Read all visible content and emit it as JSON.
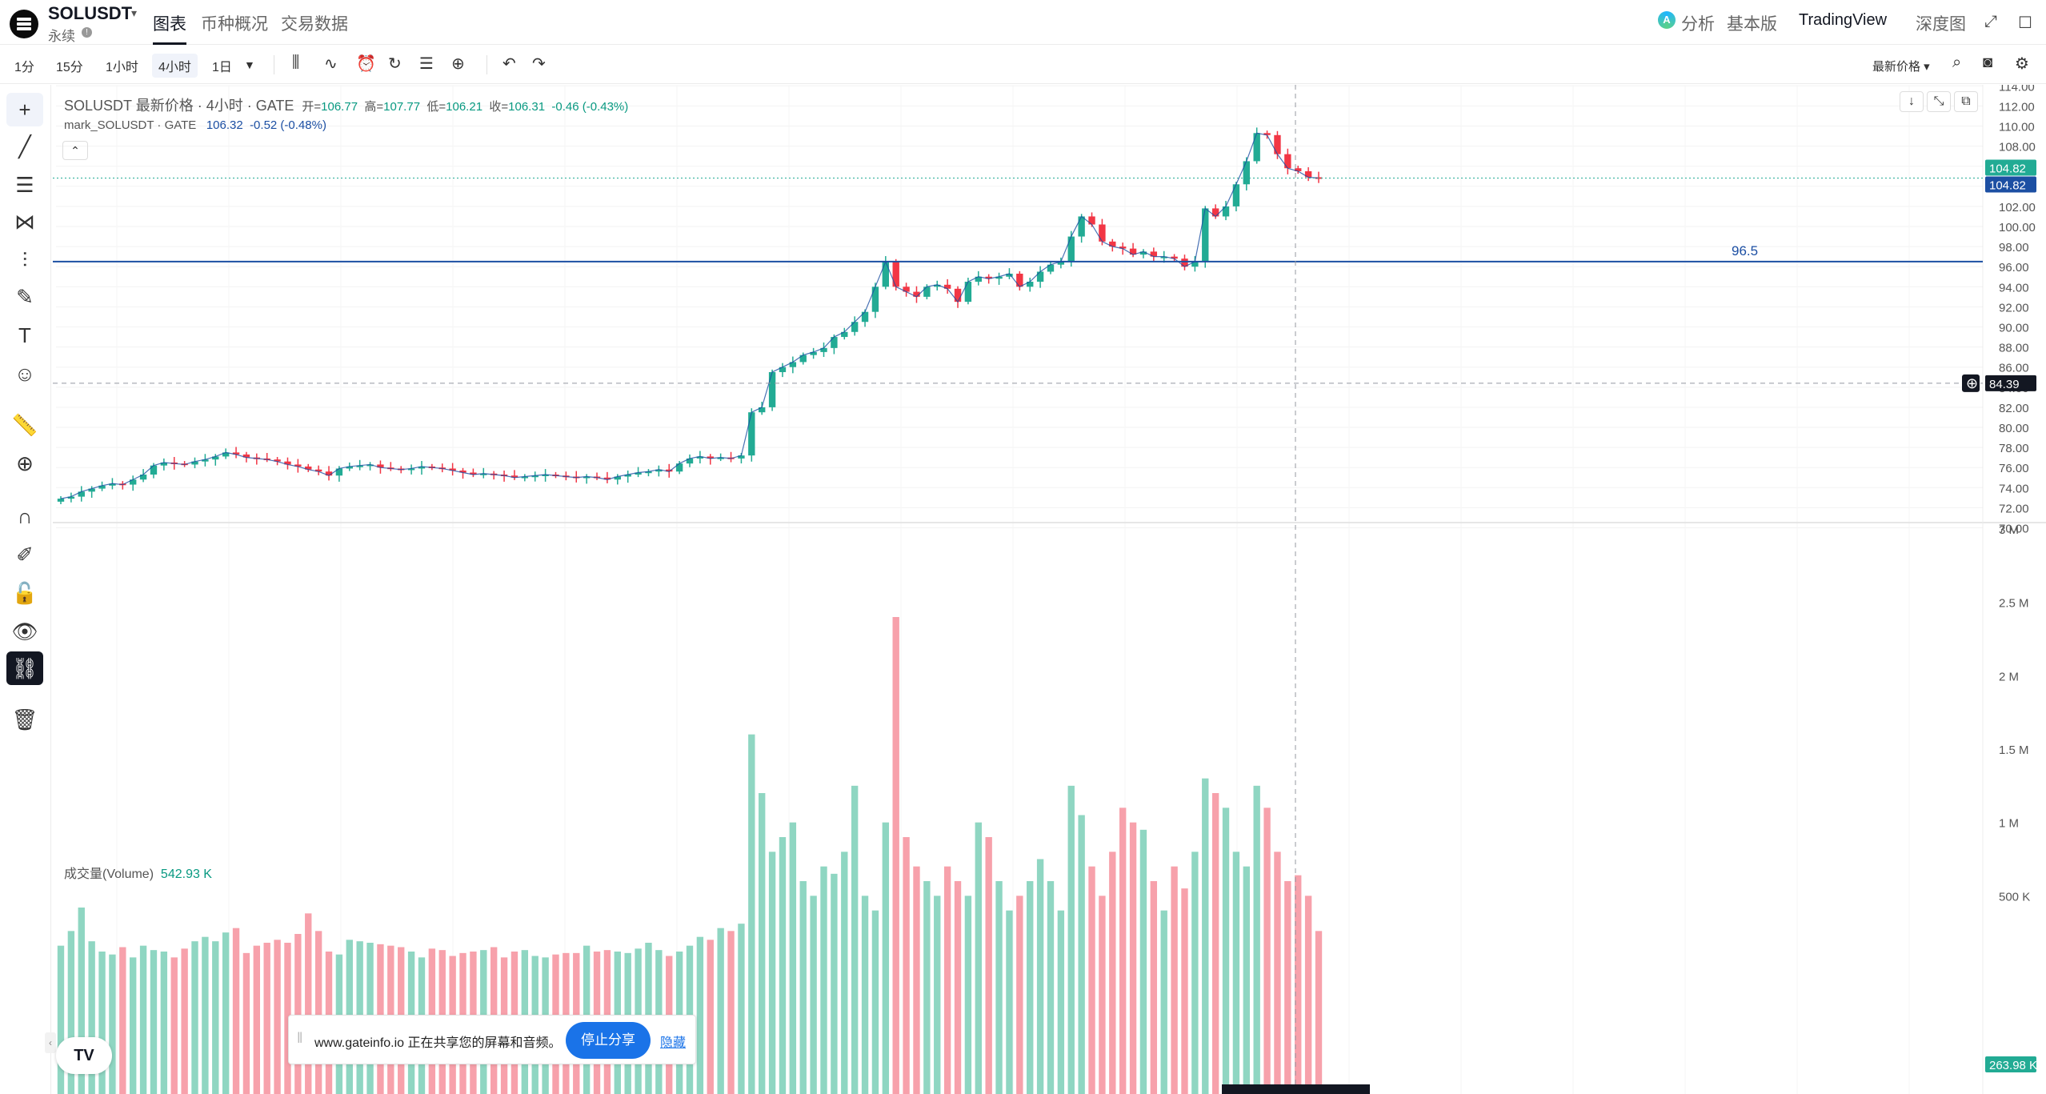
{
  "header": {
    "symbol": "SOLUSDT",
    "subtitle": "永续",
    "tabs": [
      {
        "label": "图表",
        "active": true
      },
      {
        "label": "币种概况",
        "active": false
      },
      {
        "label": "交易数据",
        "active": false
      }
    ],
    "right": {
      "analysis": "分析",
      "basic": "基本版",
      "tradingview": "TradingView",
      "depth": "深度图"
    }
  },
  "toolbar": {
    "timeframes": [
      "1分",
      "15分",
      "1小时",
      "4小时",
      "1日"
    ],
    "active_timeframe": "4小时",
    "price_type": "最新价格"
  },
  "legend": {
    "title": "SOLUSDT 最新价格 · 4小时 · GATE",
    "open_label": "开=",
    "open": "106.77",
    "high_label": "高=",
    "high": "107.77",
    "low_label": "低=",
    "low": "106.21",
    "close_label": "收=",
    "close": "106.31",
    "change": "-0.46 (-0.43%)",
    "mark_title": "mark_SOLUSDT · GATE",
    "mark_value": "106.32",
    "mark_change": "-0.52 (-0.48%)"
  },
  "volume_legend": {
    "label": "成交量(Volume)",
    "value": "542.93 K"
  },
  "price_axis": [
    "114.00",
    "112.00",
    "110.00",
    "108.00",
    "106.00",
    "104.00",
    "102.00",
    "100.00",
    "98.00",
    "96.00",
    "94.00",
    "92.00",
    "90.00",
    "88.00",
    "86.00",
    "84.00",
    "82.00",
    "80.00",
    "78.00",
    "76.00",
    "74.00",
    "72.00",
    "70.00"
  ],
  "volume_axis": [
    "3 M",
    "2.5 M",
    "2 M",
    "1.5 M",
    "1 M",
    "500 K"
  ],
  "markers": {
    "last_price": "104.82",
    "mark_price": "104.82",
    "crosshair_price": "84.39",
    "horizontal_line_label": "96.5",
    "last_volume": "263.98 K"
  },
  "colors": {
    "up": "#22ab94",
    "down": "#f23645",
    "up_volume": "#8fd6c2",
    "down_volume": "#f7a1ab",
    "line": "#1c4fa3"
  },
  "share_bar": {
    "text": "www.gateinfo.io 正在共享您的屏幕和音频。",
    "stop": "停止分享",
    "hide": "隐藏"
  },
  "tv_logo": "TV",
  "chart_data": {
    "type": "candlestick",
    "horizontal_line": 96.5,
    "closes": [
      72.9,
      73.1,
      73.6,
      73.9,
      74.2,
      74.4,
      74.3,
      74.8,
      75.3,
      76.2,
      76.5,
      76.4,
      76.3,
      76.6,
      76.8,
      77.1,
      77.5,
      77.3,
      77.0,
      76.9,
      76.8,
      76.6,
      76.3,
      76.1,
      75.8,
      75.6,
      75.2,
      75.9,
      76.1,
      76.2,
      76.3,
      76.0,
      75.9,
      75.8,
      75.9,
      76.1,
      76.0,
      75.9,
      75.7,
      75.5,
      75.3,
      75.4,
      75.3,
      75.2,
      75.0,
      75.1,
      75.2,
      75.3,
      75.2,
      75.1,
      75.0,
      75.1,
      75.0,
      74.8,
      75.1,
      75.3,
      75.5,
      75.6,
      75.8,
      75.6,
      76.4,
      76.9,
      77.1,
      76.9,
      77.0,
      76.9,
      77.2,
      81.5,
      82.0,
      85.5,
      86.0,
      86.5,
      87.2,
      87.5,
      87.9,
      89.0,
      89.5,
      90.5,
      91.5,
      94.0,
      96.5,
      94.0,
      93.5,
      93.0,
      94.0,
      94.2,
      93.8,
      92.5,
      94.5,
      95.0,
      94.8,
      95.0,
      95.3,
      94.0,
      94.5,
      95.5,
      96.2,
      96.5,
      99.0,
      101.0,
      100.2,
      98.5,
      98.0,
      97.8,
      97.2,
      97.5,
      97.0,
      97.0,
      96.8,
      96.0,
      96.5,
      101.8,
      101.0,
      102.0,
      104.2,
      106.5,
      109.3,
      109.1,
      107.2,
      105.8,
      105.5,
      104.9,
      104.82
    ],
    "volumes_k": [
      160,
      260,
      420,
      190,
      120,
      100,
      150,
      80,
      160,
      130,
      120,
      80,
      140,
      190,
      220,
      190,
      250,
      280,
      110,
      160,
      180,
      200,
      180,
      240,
      380,
      260,
      120,
      100,
      200,
      190,
      180,
      170,
      160,
      150,
      120,
      80,
      140,
      130,
      90,
      110,
      120,
      130,
      150,
      80,
      120,
      130,
      90,
      80,
      100,
      110,
      110,
      160,
      120,
      130,
      120,
      110,
      140,
      180,
      130,
      90,
      120,
      160,
      220,
      200,
      280,
      260,
      310,
      1600,
      1200,
      800,
      900,
      1000,
      600,
      500,
      700,
      650,
      800,
      1250,
      500,
      400,
      1000,
      2400,
      900,
      700,
      600,
      500,
      700,
      600,
      500,
      1000,
      900,
      600,
      400,
      500,
      600,
      750,
      600,
      400,
      1250,
      1050,
      700,
      500,
      800,
      1100,
      1000,
      950,
      600,
      400,
      700,
      550,
      800,
      1300,
      1200,
      1100,
      800,
      700,
      1250,
      1100,
      800,
      600,
      640,
      500,
      260
    ]
  }
}
